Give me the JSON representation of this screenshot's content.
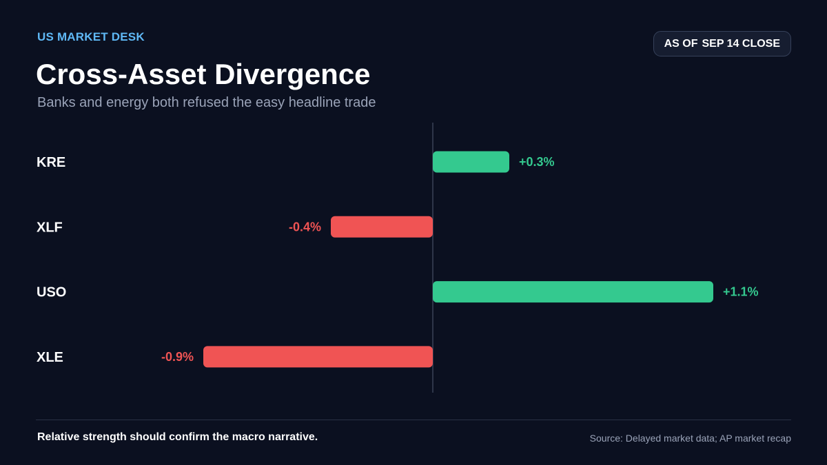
{
  "header": {
    "kicker": "US MARKET DESK",
    "title": "Cross-Asset Divergence",
    "subtitle": "Banks and energy both refused the easy headline trade",
    "badge_prefix": "AS OF",
    "badge_date": "SEP 14 CLOSE"
  },
  "chart_data": {
    "type": "bar",
    "orientation": "horizontal",
    "categories": [
      "KRE",
      "XLF",
      "USO",
      "XLE"
    ],
    "values": [
      0.3,
      -0.4,
      1.1,
      -0.9
    ],
    "value_labels": [
      "+0.3%",
      "-0.4%",
      "+1.1%",
      "-0.9%"
    ],
    "unit": "%",
    "xlim": [
      -0.9,
      1.1
    ],
    "zero_line": true,
    "grid": false,
    "legend": "none",
    "colors": {
      "positive": "#34c98f",
      "negative": "#f05454",
      "axis": "#3a4257"
    }
  },
  "footer": {
    "note": "Relative strength should confirm the macro narrative.",
    "source": "Source: Delayed market data; AP market recap"
  }
}
